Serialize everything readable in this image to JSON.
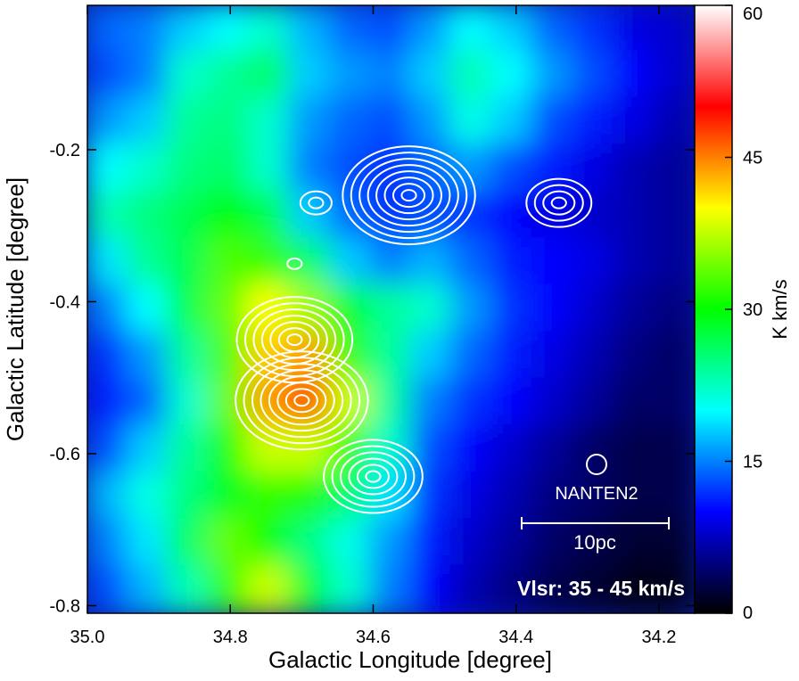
{
  "chart_data": {
    "type": "heatmap",
    "xlabel": "Galactic Longitude [degree]",
    "ylabel": "Galactic Latitude [degree]",
    "xlim": [
      35.0,
      34.15
    ],
    "ylim": [
      -0.81,
      -0.01
    ],
    "x_ticks": [
      35.0,
      34.8,
      34.6,
      34.4,
      34.2
    ],
    "x_tick_labels": [
      "35.0",
      "34.8",
      "34.6",
      "34.4",
      "34.2"
    ],
    "y_ticks": [
      -0.2,
      -0.4,
      -0.6,
      -0.8
    ],
    "y_tick_labels": [
      "-0.2",
      "-0.4",
      "-0.6",
      "-0.8"
    ],
    "colorbar": {
      "label": "K km/s",
      "range": [
        0,
        60
      ],
      "ticks": [
        0,
        15,
        30,
        45,
        60
      ],
      "tick_labels": [
        "0",
        "15",
        "30",
        "45",
        "60"
      ],
      "colormap": [
        "#000000",
        "#00007f",
        "#0000ff",
        "#0080ff",
        "#00ffff",
        "#00ff80",
        "#00ff00",
        "#80ff00",
        "#ffff00",
        "#ff8000",
        "#ff0000",
        "#ff8080",
        "#ffffff"
      ]
    },
    "velocity_label": "Vlsr: 35 - 45 km/s",
    "beam_label": "NANTEN2",
    "scalebar_label": "10pc",
    "grid": false,
    "contour_color": "#ffffff",
    "background_field": [
      [
        14,
        15,
        18,
        20,
        22,
        17,
        14,
        13,
        16,
        20,
        18,
        14,
        12,
        9,
        8
      ],
      [
        13,
        15,
        22,
        24,
        26,
        18,
        16,
        15,
        18,
        23,
        20,
        16,
        13,
        10,
        8
      ],
      [
        16,
        18,
        24,
        25,
        22,
        16,
        14,
        13,
        16,
        21,
        18,
        13,
        11,
        9,
        7
      ],
      [
        20,
        22,
        25,
        26,
        22,
        15,
        13,
        12,
        14,
        16,
        13,
        11,
        9,
        7,
        6
      ],
      [
        23,
        25,
        27,
        30,
        27,
        18,
        14,
        12,
        13,
        12,
        10,
        9,
        8,
        7,
        6
      ],
      [
        19,
        24,
        27,
        33,
        32,
        26,
        18,
        15,
        17,
        14,
        11,
        10,
        9,
        7,
        6
      ],
      [
        15,
        20,
        27,
        34,
        40,
        36,
        28,
        24,
        22,
        16,
        12,
        10,
        8,
        6,
        5
      ],
      [
        12,
        16,
        24,
        33,
        42,
        44,
        32,
        24,
        18,
        14,
        11,
        9,
        7,
        5,
        4
      ],
      [
        11,
        14,
        22,
        34,
        44,
        47,
        38,
        24,
        15,
        12,
        10,
        8,
        6,
        4,
        4
      ],
      [
        13,
        18,
        24,
        31,
        38,
        38,
        32,
        22,
        13,
        10,
        8,
        6,
        4,
        3,
        3
      ],
      [
        17,
        21,
        25,
        29,
        32,
        31,
        26,
        19,
        12,
        9,
        7,
        5,
        4,
        3,
        3
      ],
      [
        15,
        19,
        26,
        34,
        30,
        25,
        21,
        16,
        11,
        8,
        6,
        4,
        3,
        2,
        2
      ],
      [
        13,
        17,
        23,
        32,
        38,
        28,
        22,
        15,
        10,
        7,
        5,
        3,
        2,
        1,
        1
      ]
    ],
    "contour_regions": [
      {
        "name": "northern-arc-peak",
        "l": 34.55,
        "b": -0.26,
        "levels": 8
      },
      {
        "name": "northern-arc-west-knot",
        "l": 34.68,
        "b": -0.27,
        "levels": 2
      },
      {
        "name": "northern-arc-lower-knot",
        "l": 34.71,
        "b": -0.35,
        "levels": 1
      },
      {
        "name": "isolated-clump",
        "l": 34.34,
        "b": -0.27,
        "levels": 4
      },
      {
        "name": "southern-ridge-peak-1",
        "l": 34.71,
        "b": -0.45,
        "levels": 7
      },
      {
        "name": "southern-ridge-peak-2",
        "l": 34.7,
        "b": -0.53,
        "levels": 8
      },
      {
        "name": "southern-ridge-tail",
        "l": 34.6,
        "b": -0.63,
        "levels": 6
      }
    ]
  }
}
